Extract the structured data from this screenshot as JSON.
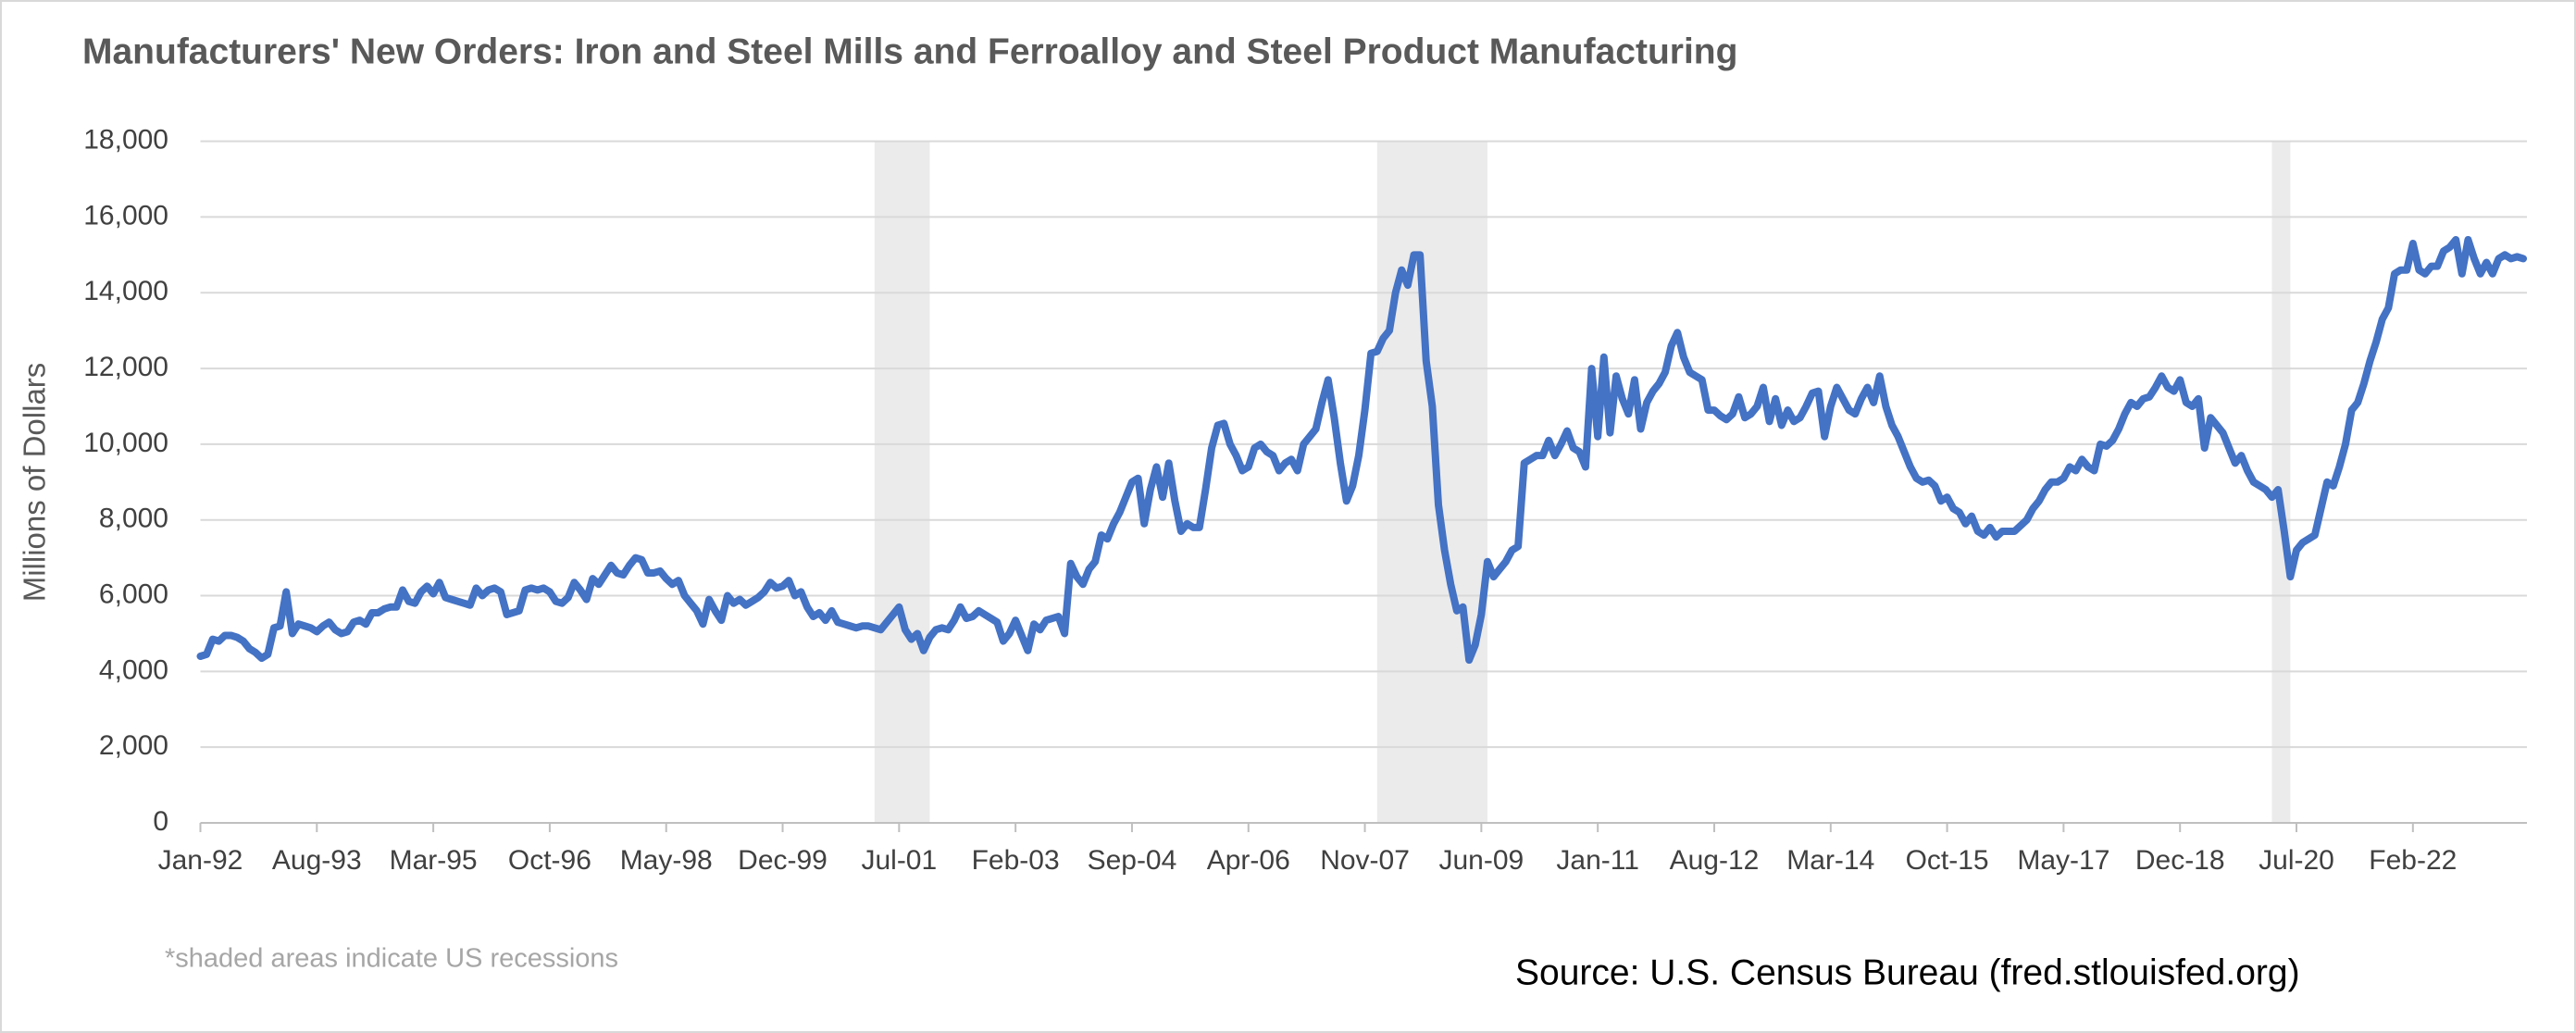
{
  "chart_data": {
    "type": "line",
    "title": "Manufacturers' New Orders: Iron and Steel Mills and Ferroalloy and Steel Product Manufacturing",
    "y_label": "Millions of Dollars",
    "note": "*shaded areas indicate US recessions",
    "source": "Source: U.S. Census Bureau (fred.stlouisfed.org)",
    "color": "#4472c4",
    "grid": true,
    "ylim": [
      0,
      18000
    ],
    "yticks": [
      0,
      {
        "value": 2000,
        "label": "2,000"
      },
      {
        "value": 4000,
        "label": "4,000"
      },
      {
        "value": 6000,
        "label": "6,000"
      },
      {
        "value": 8000,
        "label": "8,000"
      },
      {
        "value": 10000,
        "label": "10,000"
      },
      {
        "value": 12000,
        "label": "12,000"
      },
      {
        "value": 14000,
        "label": "14,000"
      },
      {
        "value": 16000,
        "label": "16,000"
      },
      {
        "value": 18000,
        "label": "18,000"
      }
    ],
    "shaded_periods": [
      {
        "start": 110,
        "end": 119
      },
      {
        "start": 192,
        "end": 210
      },
      {
        "start": 338,
        "end": 341
      }
    ],
    "categories": [
      "Jan-92",
      null,
      null,
      null,
      null,
      null,
      null,
      null,
      null,
      null,
      null,
      null,
      null,
      null,
      null,
      null,
      null,
      null,
      null,
      "Aug-93",
      null,
      null,
      null,
      null,
      null,
      null,
      null,
      null,
      null,
      null,
      null,
      null,
      null,
      null,
      null,
      null,
      null,
      null,
      "Mar-95",
      null,
      null,
      null,
      null,
      null,
      null,
      null,
      null,
      null,
      null,
      null,
      null,
      null,
      null,
      null,
      null,
      null,
      null,
      "Oct-96",
      null,
      null,
      null,
      null,
      null,
      null,
      null,
      null,
      null,
      null,
      null,
      null,
      null,
      null,
      null,
      null,
      null,
      null,
      "May-98",
      null,
      null,
      null,
      null,
      null,
      null,
      null,
      null,
      null,
      null,
      null,
      null,
      null,
      null,
      null,
      null,
      null,
      null,
      "Dec-99",
      null,
      null,
      null,
      null,
      null,
      null,
      null,
      null,
      null,
      null,
      null,
      null,
      null,
      null,
      null,
      null,
      null,
      null,
      "Jul-01",
      null,
      null,
      null,
      null,
      null,
      null,
      null,
      null,
      null,
      null,
      null,
      null,
      null,
      null,
      null,
      null,
      null,
      null,
      "Feb-03",
      null,
      null,
      null,
      null,
      null,
      null,
      null,
      null,
      null,
      null,
      null,
      null,
      null,
      null,
      null,
      null,
      null,
      null,
      "Sep-04",
      null,
      null,
      null,
      null,
      null,
      null,
      null,
      null,
      null,
      null,
      null,
      null,
      null,
      null,
      null,
      null,
      null,
      null,
      "Apr-06",
      null,
      null,
      null,
      null,
      null,
      null,
      null,
      null,
      null,
      null,
      null,
      null,
      null,
      null,
      null,
      null,
      null,
      null,
      "Nov-07",
      null,
      null,
      null,
      null,
      null,
      null,
      null,
      null,
      null,
      null,
      null,
      null,
      null,
      null,
      null,
      null,
      null,
      null,
      "Jun-09",
      null,
      null,
      null,
      null,
      null,
      null,
      null,
      null,
      null,
      null,
      null,
      null,
      null,
      null,
      null,
      null,
      null,
      null,
      "Jan-11",
      null,
      null,
      null,
      null,
      null,
      null,
      null,
      null,
      null,
      null,
      null,
      null,
      null,
      null,
      null,
      null,
      null,
      null,
      "Aug-12",
      null,
      null,
      null,
      null,
      null,
      null,
      null,
      null,
      null,
      null,
      null,
      null,
      null,
      null,
      null,
      null,
      null,
      null,
      "Mar-14",
      null,
      null,
      null,
      null,
      null,
      null,
      null,
      null,
      null,
      null,
      null,
      null,
      null,
      null,
      null,
      null,
      null,
      null,
      "Oct-15",
      null,
      null,
      null,
      null,
      null,
      null,
      null,
      null,
      null,
      null,
      null,
      null,
      null,
      null,
      null,
      null,
      null,
      null,
      "May-17",
      null,
      null,
      null,
      null,
      null,
      null,
      null,
      null,
      null,
      null,
      null,
      null,
      null,
      null,
      null,
      null,
      null,
      null,
      "Dec-18",
      null,
      null,
      null,
      null,
      null,
      null,
      null,
      null,
      null,
      null,
      null,
      null,
      null,
      null,
      null,
      null,
      null,
      null,
      "Jul-20",
      null,
      null,
      null,
      null,
      null,
      null,
      null,
      null,
      null,
      null,
      null,
      null,
      null,
      null,
      null,
      null,
      null,
      null,
      "Feb-22",
      null,
      null,
      null,
      null,
      null,
      null,
      null,
      null,
      null,
      null,
      null,
      null,
      null,
      null,
      null,
      null,
      null,
      null
    ],
    "values": [
      4400,
      4450,
      4850,
      4800,
      4950,
      4950,
      4900,
      4800,
      4600,
      4500,
      4350,
      4450,
      5150,
      5200,
      6100,
      5000,
      5250,
      5200,
      5150,
      5050,
      5200,
      5300,
      5100,
      5000,
      5050,
      5300,
      5350,
      5250,
      5550,
      5550,
      5650,
      5700,
      5700,
      6150,
      5850,
      5800,
      6100,
      6250,
      6050,
      6350,
      5950,
      5900,
      5850,
      5800,
      5750,
      6200,
      6000,
      6150,
      6200,
      6100,
      5500,
      5550,
      5600,
      6150,
      6200,
      6150,
      6200,
      6100,
      5850,
      5800,
      5950,
      6350,
      6150,
      5900,
      6450,
      6300,
      6550,
      6800,
      6600,
      6550,
      6800,
      7000,
      6950,
      6600,
      6600,
      6650,
      6450,
      6300,
      6400,
      6000,
      5800,
      5600,
      5250,
      5900,
      5600,
      5350,
      6000,
      5800,
      5900,
      5750,
      5850,
      5950,
      6100,
      6350,
      6200,
      6250,
      6400,
      6000,
      6100,
      5700,
      5450,
      5550,
      5350,
      5600,
      5300,
      5250,
      5200,
      5150,
      5200,
      5200,
      5150,
      5100,
      5300,
      5500,
      5700,
      5100,
      4850,
      5000,
      4550,
      4900,
      5100,
      5150,
      5100,
      5350,
      5700,
      5400,
      5450,
      5600,
      5500,
      5400,
      5300,
      4800,
      5000,
      5350,
      4950,
      4550,
      5250,
      5100,
      5350,
      5400,
      5450,
      5000,
      6850,
      6500,
      6300,
      6700,
      6900,
      7600,
      7500,
      7900,
      8200,
      8600,
      9000,
      9100,
      7900,
      8800,
      9400,
      8600,
      9500,
      8500,
      7700,
      7900,
      7800,
      7800,
      8800,
      9900,
      10500,
      10550,
      10000,
      9700,
      9300,
      9400,
      9900,
      10000,
      9800,
      9700,
      9300,
      9500,
      9600,
      9300,
      10000,
      10200,
      10400,
      11100,
      11700,
      10700,
      9500,
      8500,
      8900,
      9700,
      10900,
      12400,
      12450,
      12800,
      13000,
      14000,
      14600,
      14200,
      15000,
      15000,
      12200,
      11000,
      8400,
      7200,
      6300,
      5600,
      5700,
      4300,
      4700,
      5500,
      6900,
      6500,
      6700,
      6900,
      7200,
      7300,
      9500,
      9600,
      9700,
      9700,
      10100,
      9700,
      10000,
      10350,
      9900,
      9800,
      9400,
      12000,
      10200,
      12300,
      10300,
      11800,
      11200,
      10800,
      11700,
      10400,
      11100,
      11400,
      11600,
      11900,
      12600,
      12950,
      12300,
      11900,
      11800,
      11700,
      10900,
      10900,
      10750,
      10650,
      10800,
      11250,
      10700,
      10800,
      11000,
      11500,
      10600,
      11200,
      10500,
      10900,
      10600,
      10700,
      11000,
      11350,
      11400,
      10200,
      11000,
      11500,
      11200,
      10900,
      10800,
      11200,
      11500,
      11100,
      11800,
      11000,
      10500,
      10200,
      9800,
      9400,
      9100,
      9000,
      9050,
      8900,
      8500,
      8600,
      8300,
      8200,
      7900,
      8100,
      7700,
      7600,
      7800,
      7550,
      7700,
      7700,
      7700,
      7850,
      8000,
      8300,
      8500,
      8800,
      9000,
      9000,
      9100,
      9400,
      9300,
      9600,
      9400,
      9300,
      10000,
      9950,
      10100,
      10400,
      10800,
      11100,
      11000,
      11200,
      11250,
      11500,
      11800,
      11500,
      11400,
      11700,
      11100,
      11000,
      11200,
      9900,
      10700,
      10500,
      10300,
      9900,
      9500,
      9700,
      9300,
      9000,
      8900,
      8800,
      8600,
      8800,
      7700,
      6500,
      7200,
      7400,
      7500,
      7600,
      8300,
      9000,
      8900,
      9400,
      10000,
      10900,
      11100,
      11600,
      12200,
      12700,
      13300,
      13600,
      14500,
      14600,
      14600,
      15300,
      14600,
      14500,
      14700,
      14700,
      15100,
      15200,
      15400,
      14500,
      15400,
      14900,
      14500,
      14800,
      14500,
      14900,
      15000,
      14900,
      14950,
      14900
    ]
  }
}
